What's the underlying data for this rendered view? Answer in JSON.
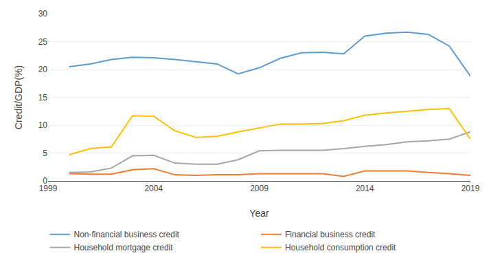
{
  "chart_data": {
    "type": "line",
    "xlabel": "Year",
    "ylabel": "Credit/GDP(%)",
    "x": [
      2000,
      2001,
      2002,
      2003,
      2004,
      2005,
      2006,
      2007,
      2008,
      2009,
      2010,
      2011,
      2012,
      2013,
      2014,
      2015,
      2016,
      2017,
      2018,
      2019
    ],
    "series": [
      {
        "name": "Non-financial business credit",
        "color": "#5B9BD5",
        "values": [
          20.5,
          21.0,
          21.8,
          22.2,
          22.1,
          21.8,
          21.4,
          21.0,
          19.2,
          20.3,
          22.0,
          23.0,
          23.1,
          22.8,
          26.0,
          26.5,
          26.7,
          26.3,
          24.2,
          18.8
        ]
      },
      {
        "name": "Financial business credit",
        "color": "#ED7D31",
        "values": [
          1.3,
          1.2,
          1.2,
          2.0,
          2.2,
          1.1,
          1.0,
          1.1,
          1.1,
          1.3,
          1.3,
          1.3,
          1.3,
          0.8,
          1.8,
          1.8,
          1.8,
          1.5,
          1.3,
          1.0
        ]
      },
      {
        "name": "Household mortgage credit",
        "color": "#A5A5A5",
        "values": [
          1.5,
          1.6,
          2.3,
          4.5,
          4.6,
          3.2,
          3.0,
          3.0,
          3.8,
          5.4,
          5.5,
          5.5,
          5.5,
          5.8,
          6.2,
          6.5,
          7.0,
          7.2,
          7.5,
          8.8
        ]
      },
      {
        "name": "Household consumption credit",
        "color": "#FFC000",
        "values": [
          4.7,
          5.8,
          6.1,
          11.7,
          11.6,
          9.0,
          7.8,
          8.0,
          8.8,
          9.5,
          10.2,
          10.2,
          10.3,
          10.8,
          11.8,
          12.2,
          12.5,
          12.8,
          13.0,
          7.5
        ]
      }
    ],
    "xlim": [
      1999,
      2019
    ],
    "xticks": [
      1999,
      2004,
      2009,
      2014,
      2019
    ],
    "ylim": [
      0,
      30
    ],
    "yticks": [
      0,
      5,
      10,
      15,
      20,
      25,
      30
    ],
    "grid": "y",
    "legend": "bottom"
  }
}
